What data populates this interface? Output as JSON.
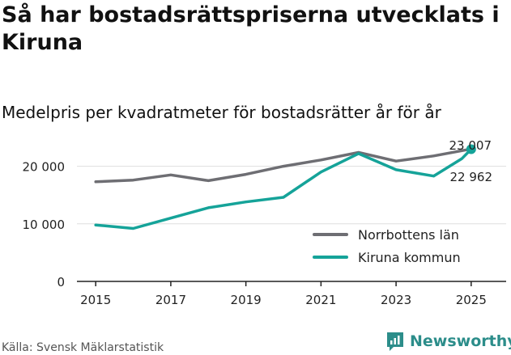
{
  "title": "Så har bostadsrättspriserna utvecklats i Kiruna",
  "subtitle": "Medelpris per kvadratmeter för bostadsrätter år för år",
  "source": "Källa: Svensk Mäklarstatistik",
  "brand": {
    "name": "Newsworthy",
    "icon": "newsworthy-logo-icon",
    "color": "#2c8d8a"
  },
  "chart_data": {
    "type": "line",
    "x": [
      2015,
      2016,
      2017,
      2018,
      2019,
      2020,
      2021,
      2022,
      2023,
      2024,
      2025
    ],
    "xticks": [
      {
        "value": 2015,
        "label": "2015"
      },
      {
        "value": 2017,
        "label": "2017"
      },
      {
        "value": 2019,
        "label": "2019"
      },
      {
        "value": 2021,
        "label": "2021"
      },
      {
        "value": 2023,
        "label": "2023"
      },
      {
        "value": 2025,
        "label": "2025"
      }
    ],
    "yticks": [
      {
        "value": 0,
        "label": "0"
      },
      {
        "value": 10000,
        "label": "10 000"
      },
      {
        "value": 20000,
        "label": "20 000"
      }
    ],
    "xlim": [
      2014.5,
      2025.5
    ],
    "ylim": [
      0,
      25000
    ],
    "series": [
      {
        "name": "Norrbottens län",
        "color": "#6e6e73",
        "x": [
          2015,
          2016,
          2017,
          2018,
          2019,
          2020,
          2021,
          2022,
          2023,
          2024,
          2025
        ],
        "values": [
          17300,
          17600,
          18500,
          17500,
          18600,
          20000,
          21100,
          22400,
          20900,
          21800,
          23007
        ],
        "end_label": "23 007"
      },
      {
        "name": "Kiruna kommun",
        "color": "#15a399",
        "x": [
          2015,
          2016,
          2017,
          2018,
          2019,
          2020,
          2021,
          2022,
          2023,
          2024,
          2024.75,
          2025
        ],
        "values": [
          9800,
          9200,
          11000,
          12800,
          13800,
          14600,
          19000,
          22200,
          19400,
          18300,
          21300,
          22962
        ],
        "end_label": "22 962"
      }
    ],
    "legend": "bottom-right"
  }
}
